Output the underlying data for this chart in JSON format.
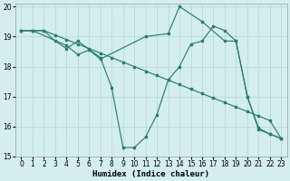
{
  "xlabel": "Humidex (Indice chaleur)",
  "bg_color": "#d4eeee",
  "grid_color": "#b8d8d8",
  "line_color": "#2a7d6e",
  "xlim": [
    -0.5,
    23.5
  ],
  "ylim": [
    15,
    20.1
  ],
  "yticks": [
    15,
    16,
    17,
    18,
    19,
    20
  ],
  "xticks": [
    0,
    1,
    2,
    3,
    4,
    5,
    6,
    7,
    8,
    9,
    10,
    11,
    12,
    13,
    14,
    15,
    16,
    17,
    18,
    19,
    20,
    21,
    22,
    23
  ],
  "line1_x": [
    0,
    1,
    2,
    3,
    4,
    5,
    6,
    7,
    8,
    9,
    10,
    11,
    12,
    13,
    14,
    15,
    16,
    17,
    18,
    19,
    20,
    21,
    22,
    23
  ],
  "line1_y": [
    19.2,
    19.2,
    19.2,
    19.05,
    18.9,
    18.75,
    18.6,
    18.45,
    18.3,
    18.15,
    18.0,
    17.85,
    17.7,
    17.55,
    17.4,
    17.25,
    17.1,
    16.95,
    16.8,
    16.65,
    16.5,
    16.35,
    16.2,
    15.6
  ],
  "line2_x": [
    0,
    1,
    2,
    3,
    4,
    5,
    7,
    8,
    9,
    10,
    11,
    12,
    13,
    14,
    15,
    16,
    17,
    18,
    19,
    20,
    21,
    22,
    23
  ],
  "line2_y": [
    19.2,
    19.2,
    19.2,
    18.85,
    18.6,
    18.85,
    18.3,
    17.3,
    15.3,
    15.3,
    15.65,
    16.4,
    17.55,
    18.0,
    18.75,
    18.85,
    19.35,
    19.2,
    18.85,
    17.0,
    15.9,
    15.75,
    15.6
  ],
  "line3_x": [
    0,
    1,
    4,
    5,
    6,
    7,
    11,
    13,
    14,
    16,
    18,
    19,
    20,
    21,
    22,
    23
  ],
  "line3_y": [
    19.2,
    19.2,
    18.7,
    18.4,
    18.55,
    18.25,
    19.0,
    19.1,
    20.0,
    19.5,
    18.85,
    18.85,
    17.0,
    15.95,
    15.75,
    15.6
  ]
}
